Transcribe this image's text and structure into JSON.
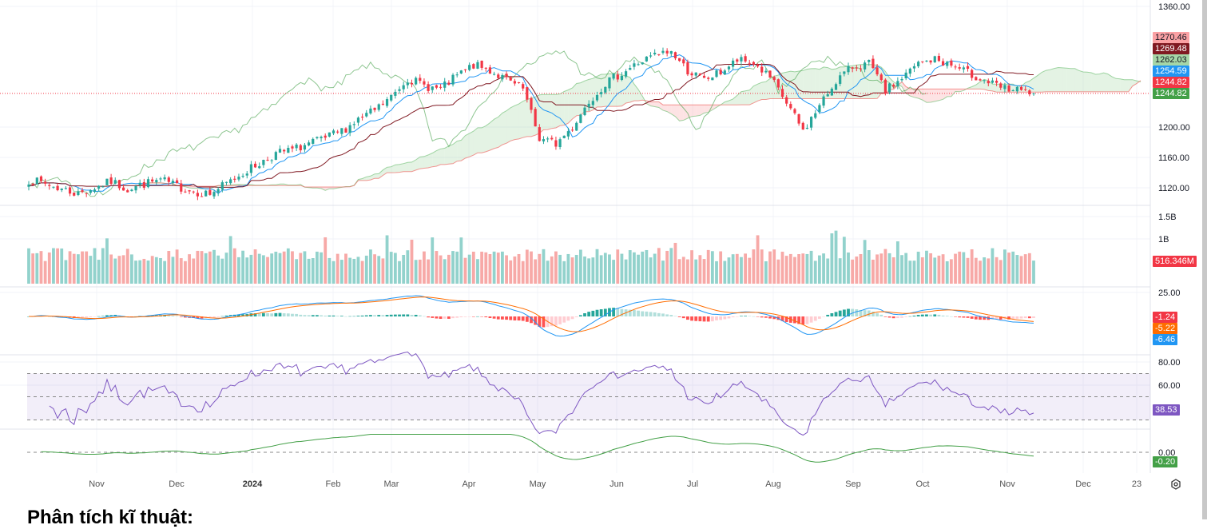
{
  "chart_data": {
    "type": "candlestick",
    "indicators": [
      "Ichimoku Cloud",
      "Volume",
      "MACD",
      "RSI",
      "Oscillator"
    ],
    "price_axis": {
      "ticks": [
        "1360.00",
        "1200.00",
        "1160.00",
        "1120.00"
      ],
      "range": [
        1105,
        1362
      ]
    },
    "weekly_close_approx": [
      1130,
      1125,
      1118,
      1112,
      1120,
      1128,
      1118,
      1125,
      1130,
      1122,
      1115,
      1112,
      1125,
      1140,
      1152,
      1165,
      1170,
      1178,
      1185,
      1195,
      1210,
      1222,
      1240,
      1265,
      1255,
      1250,
      1268,
      1282,
      1275,
      1262,
      1250,
      1185,
      1178,
      1200,
      1235,
      1258,
      1272,
      1285,
      1295,
      1300,
      1275,
      1262,
      1273,
      1288,
      1285,
      1265,
      1232,
      1195,
      1228,
      1262,
      1280,
      1284,
      1248,
      1265,
      1284,
      1290,
      1282,
      1272,
      1262,
      1252,
      1248,
      1244.82
    ],
    "time_axis": {
      "labels": [
        "Nov",
        "Dec",
        "2024",
        "Feb",
        "Mar",
        "Apr",
        "May",
        "Jun",
        "Jul",
        "Aug",
        "Sep",
        "Oct",
        "Nov",
        "Dec",
        "23"
      ]
    },
    "last_values": {
      "ichimoku": [
        "1270.46",
        "1269.48",
        "1262.03",
        "1254.59",
        "1244.82",
        "1244.82"
      ],
      "volume": "516.346M",
      "macd": [
        "-1.24",
        "-5.22",
        "-6.46"
      ],
      "rsi": "38.53",
      "oscillator": "-0.20"
    },
    "volume_axis": {
      "ticks": [
        "1.5B",
        "1B"
      ]
    },
    "macd_axis": {
      "ticks": [
        "25.00"
      ]
    },
    "rsi_axis": {
      "ticks": [
        "80.00",
        "60.00"
      ],
      "bands": [
        30,
        50,
        70
      ]
    },
    "oscillator_axis": {
      "ticks": [
        "0.00"
      ]
    },
    "colors": {
      "up": "#26a69a",
      "down": "#f23645",
      "tenkan": "#2196f3",
      "kijun": "#801922",
      "chikou": "#43a047",
      "cloud_up": "#a5d6a7",
      "cloud_down": "#faa1a4",
      "rsi": "#7e57c2",
      "macd": "#2196f3",
      "signal": "#ff6d00",
      "osc": "#43a047"
    }
  },
  "tag_colors": {
    "ichimoku": [
      "#faa1a4",
      "#801922",
      "#a5d6a7",
      "#2196f3",
      "#f23645",
      "#43a047"
    ],
    "ichimoku_text": [
      "#131722",
      "#ffffff",
      "#131722",
      "#ffffff",
      "#ffffff",
      "#ffffff"
    ],
    "macd": [
      "#f23645",
      "#ff6d00",
      "#2196f3"
    ]
  },
  "heading": "Phân tích kĩ thuật:",
  "icons": {
    "settings": "gear-icon"
  }
}
